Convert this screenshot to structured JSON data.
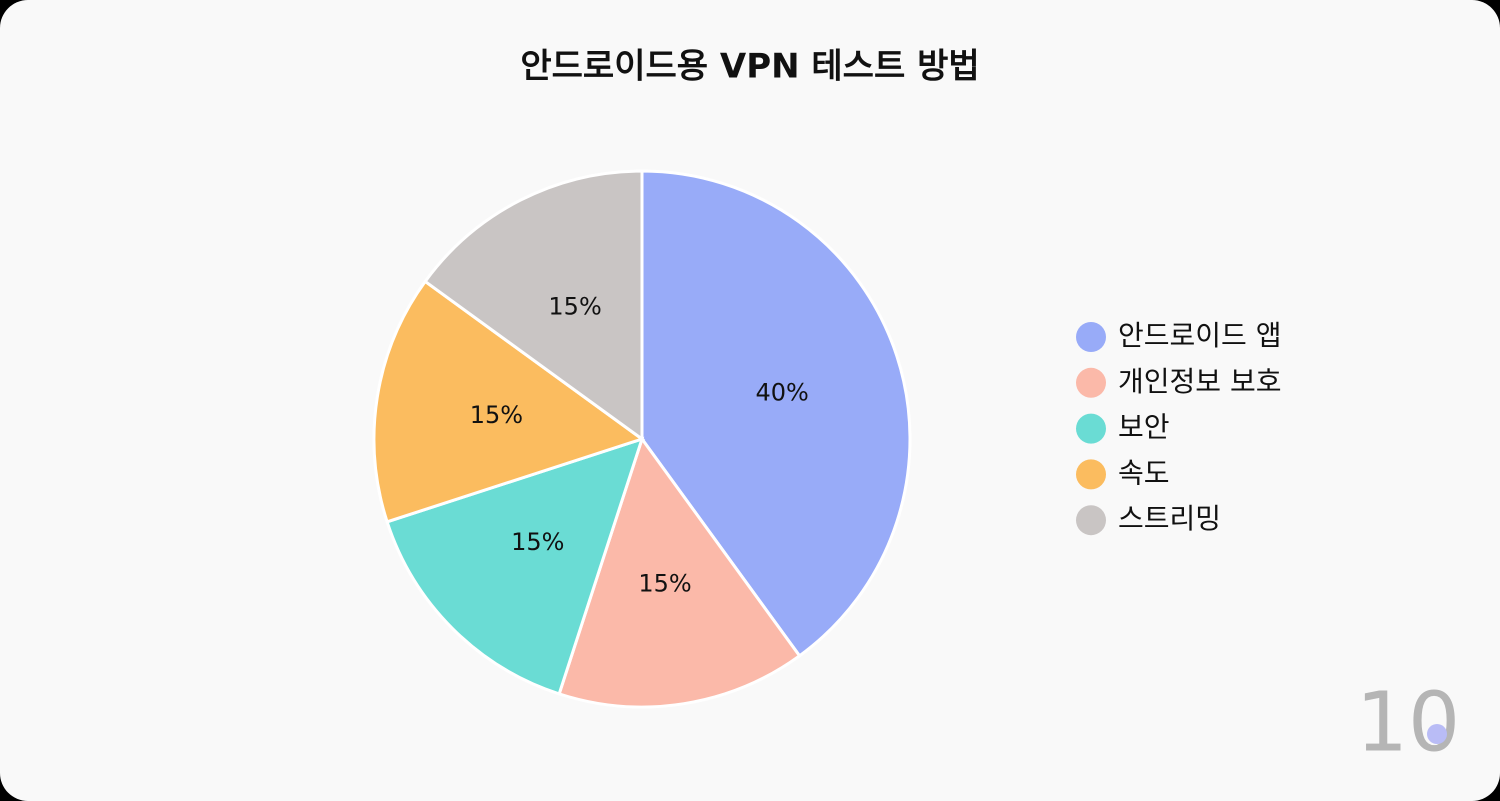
{
  "chart_data": {
    "type": "pie",
    "title": "안드로이드용 VPN 테스트 방법",
    "categories": [
      "안드로이드 앱",
      "개인정보 보호",
      "보안",
      "속도",
      "스트리밍"
    ],
    "values": [
      40,
      15,
      15,
      15,
      15
    ],
    "value_labels": [
      "40%",
      "15%",
      "15%",
      "15%",
      "15%"
    ],
    "colors": [
      "#98abf8",
      "#fbb9a9",
      "#6adcd4",
      "#fbbc5f",
      "#c9c5c4"
    ],
    "legend": "right"
  },
  "logo": "10"
}
